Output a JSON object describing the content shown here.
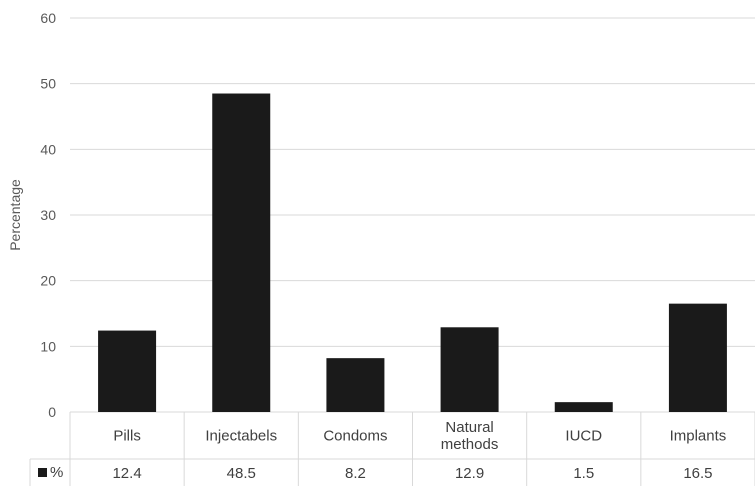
{
  "chart_data": {
    "type": "bar",
    "ylabel": "Percentage",
    "ylim": [
      0,
      60
    ],
    "yticks": [
      0,
      10,
      20,
      30,
      40,
      50,
      60
    ],
    "grid": true,
    "categories": [
      [
        "Pills"
      ],
      [
        "Injectabels"
      ],
      [
        "Condoms"
      ],
      [
        "Natural",
        "methods"
      ],
      [
        "IUCD"
      ],
      [
        "Implants"
      ]
    ],
    "series": [
      {
        "name": "%",
        "values": [
          12.4,
          48.5,
          8.2,
          12.9,
          1.5,
          16.5
        ],
        "labels": [
          "12.4",
          "48.5",
          "8.2",
          "12.9",
          "1.5",
          "16.5"
        ],
        "color": "#1a1a1a"
      }
    ],
    "data_table": true
  },
  "colors": {
    "grid": "#d9d9d9",
    "bar": "#1a1a1a",
    "text": "#404040"
  }
}
